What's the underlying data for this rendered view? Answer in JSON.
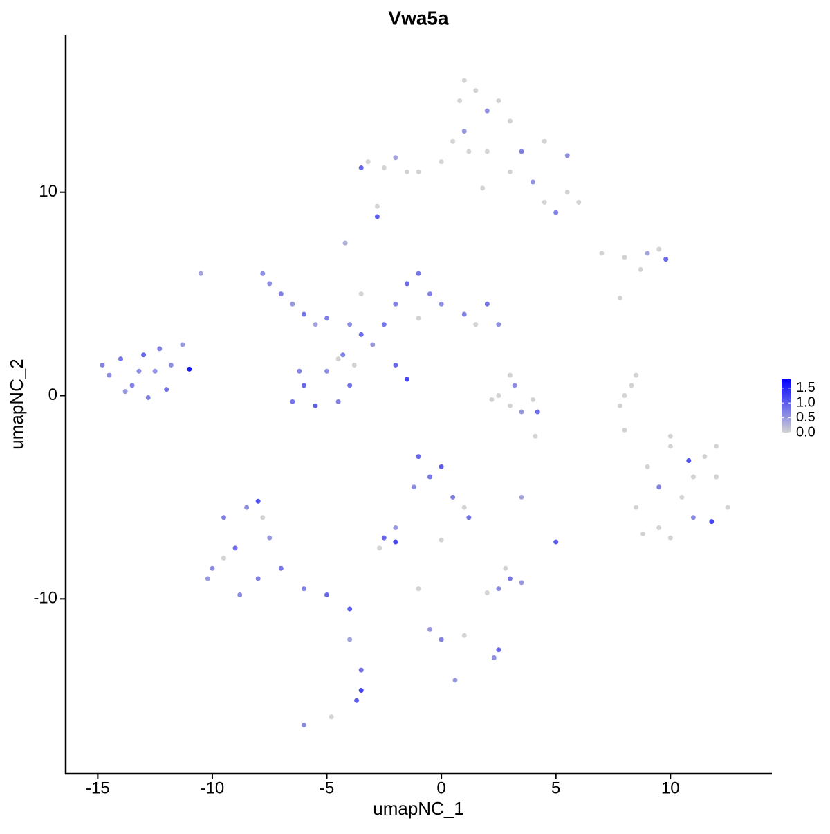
{
  "chart_data": {
    "type": "scatter",
    "title": "Vwa5a",
    "x_label": "umapNC_1",
    "y_label": "umapNC_2",
    "xlim": [
      -16.4,
      14.4
    ],
    "ylim": [
      -18.6,
      17.75
    ],
    "xticks": [
      -15,
      -10,
      -5,
      0,
      5,
      10
    ],
    "yticks": [
      -10,
      0,
      10
    ],
    "color_low": "#d3d3d3",
    "color_high": "#0000ff",
    "color_lim": [
      0,
      1.8
    ],
    "color_ticks": [
      {
        "value": 0,
        "label": "0.0"
      },
      0.5,
      {
        "value": 1,
        "label": "1.0"
      },
      1.5
    ],
    "x": [
      -14.5,
      -14.0,
      -13.5,
      -13.0,
      -12.5,
      -12.0,
      -13.8,
      -12.8,
      -11.8,
      -11.3,
      -11.0,
      -14.8,
      -13.2,
      -12.3,
      -7.5,
      -7.0,
      -6.5,
      -7.8,
      -6.0,
      -5.5,
      -5.0,
      -4.0,
      -3.5,
      -3.0,
      -3.8,
      -4.3,
      -2.5,
      -6.0,
      -6.5,
      -5.5,
      -4.5,
      -4.0,
      -5.0,
      -6.2,
      -4.5,
      -2.0,
      -1.5,
      -1.0,
      -0.5,
      0,
      1.0,
      2.0,
      2.5,
      -1.0,
      1.5,
      -2.0,
      -1.5,
      -4.2,
      -3.5,
      -10.5,
      -10.0,
      -9.5,
      -9.0,
      -8.5,
      -8.0,
      -7.5,
      -8.8,
      -7.0,
      -6.0,
      -5.0,
      -4.0,
      -9.5,
      -7.8,
      -8.0,
      -10.2,
      -4.0,
      -3.5,
      -3.5,
      -3.7,
      -6.0,
      -4.8,
      -1.0,
      -0.5,
      0,
      0.5,
      -1.2,
      1.0,
      1.2,
      -2.0,
      -2.5,
      -2.0,
      -2.7,
      0.0,
      2.5,
      3.0,
      3.5,
      2.0,
      2.8,
      5.0,
      3.5,
      -1.0,
      -0.5,
      0,
      1.0,
      2.5,
      2.3,
      0.6,
      2.5,
      3.0,
      3.2,
      3.5,
      4.0,
      4.2,
      2.2,
      3.0,
      4.1,
      8.0,
      8.3,
      8.5,
      7.8,
      8.0,
      9,
      9.5,
      10,
      10.5,
      11,
      11.5,
      12,
      12.5,
      10,
      8.5,
      11,
      9.5,
      12.0,
      10.8,
      11.8,
      8.8,
      10.0,
      7,
      8,
      9,
      9.5,
      9.8,
      8.7,
      7.8,
      -3.2,
      -2.5,
      -2.0,
      -1.5,
      -3.5,
      -1.0,
      0,
      0.5,
      0.8,
      1.5,
      2.5,
      3.0,
      1.0,
      2.0,
      3.5,
      4.5,
      5.5,
      5.5,
      6.0,
      4.5,
      5.0,
      4.0,
      1.8,
      3.0,
      2.0,
      1.2,
      -2.8,
      -2.8,
      1.0
    ],
    "y": [
      1.0,
      1.8,
      0.5,
      2.0,
      1.2,
      0.3,
      0.2,
      -0.1,
      1.5,
      2.5,
      1.3,
      1.5,
      1.2,
      2.3,
      5.5,
      5.0,
      4.5,
      6.0,
      4.0,
      3.5,
      3.8,
      3.5,
      3.0,
      2.5,
      1.5,
      2.0,
      3.5,
      0.5,
      -0.3,
      -0.5,
      -0.3,
      0.5,
      1.2,
      1.2,
      1.8,
      4.5,
      5.5,
      6.0,
      5.0,
      4.5,
      4.0,
      4.5,
      3.5,
      3.8,
      3.5,
      1.5,
      0.8,
      7.5,
      5.0,
      6.0,
      -8.5,
      -6.0,
      -7.5,
      -5.5,
      -9.0,
      -7.0,
      -9.8,
      -8.5,
      -9.5,
      -9.8,
      -10.5,
      -8.0,
      -6.0,
      -5.2,
      -9.0,
      -12,
      -13.5,
      -14.5,
      -15.0,
      -16.2,
      -15.8,
      -3.0,
      -4.0,
      -3.5,
      -5.0,
      -4.5,
      -5.5,
      -6.0,
      -6.5,
      -7.0,
      -7.2,
      -7.5,
      -7.1,
      -9.5,
      -9.0,
      -9.2,
      -9.7,
      -8.5,
      -7.2,
      -5.0,
      -9.5,
      -11.5,
      -12.0,
      -11.8,
      -12.5,
      -12.9,
      -14.0,
      0,
      -0.5,
      0.5,
      -0.8,
      -0.2,
      -0.8,
      -0.2,
      1.0,
      -2.0,
      0.0,
      0.5,
      1.0,
      -0.5,
      -1.7,
      -3.5,
      -4.5,
      -2.5,
      -5.0,
      -6.0,
      -3.0,
      -4.0,
      -5.5,
      -7.0,
      -5.5,
      -4.0,
      -6.5,
      -2.5,
      -3.2,
      -6.2,
      -6.8,
      -2.0,
      7,
      6.8,
      7.0,
      7.2,
      6.7,
      6.2,
      4.8,
      11.5,
      11.2,
      11.7,
      11.0,
      11.2,
      11.0,
      11.5,
      12.5,
      14.5,
      15.0,
      14.5,
      13.5,
      13.0,
      12.0,
      12.0,
      12.5,
      11.8,
      10.0,
      9.5,
      9.5,
      9.0,
      10.5,
      10.2,
      11.0,
      14.0,
      12.0,
      8.8,
      9.3,
      15.5
    ],
    "color_values": [
      0.6,
      0.8,
      0.7,
      0.9,
      0.6,
      0.8,
      0.5,
      0.7,
      0.6,
      0.5,
      1.6,
      0.7,
      0.6,
      0.7,
      0.6,
      0.7,
      0.5,
      0.6,
      0.8,
      0.4,
      0.7,
      0.6,
      0.9,
      0.5,
      0.0,
      0.7,
      0.8,
      0.9,
      0.8,
      1.0,
      0.7,
      0.8,
      0.6,
      0.7,
      0.0,
      0.7,
      0.9,
      0.8,
      0.7,
      0.6,
      0.7,
      0.8,
      0.6,
      0.0,
      0.0,
      0.9,
      1.2,
      0.3,
      0.0,
      0.4,
      0.6,
      0.7,
      0.8,
      0.6,
      0.7,
      0.5,
      0.6,
      0.8,
      0.7,
      0.9,
      1.0,
      0.0,
      0.0,
      1.1,
      0.5,
      0.4,
      0.8,
      1.2,
      1.0,
      0.6,
      0.0,
      0.9,
      0.8,
      1.0,
      0.7,
      0.6,
      0.0,
      0.8,
      0.5,
      0.9,
      1.2,
      0.0,
      0.0,
      0.6,
      0.8,
      0.5,
      0.0,
      0.0,
      1.0,
      0.4,
      0.0,
      0.5,
      0.7,
      0.0,
      0.9,
      0.6,
      0.5,
      0.0,
      0.0,
      0.6,
      0.5,
      0.0,
      0.9,
      0.0,
      0.0,
      0.0,
      0,
      0,
      0,
      0,
      0,
      0,
      0.7,
      0,
      0,
      0.6,
      0,
      0,
      0,
      0,
      0,
      0,
      0,
      0,
      1.1,
      1.2,
      0,
      0,
      0,
      0,
      0.4,
      0,
      0.9,
      0,
      0,
      0,
      0,
      0.4,
      0,
      0.9,
      0,
      0,
      0,
      0,
      0,
      0,
      0,
      0.5,
      0,
      0.7,
      0,
      0.6,
      0,
      0,
      0,
      0.7,
      0.6,
      0,
      0,
      0.6,
      0,
      1.0,
      0,
      0
    ]
  }
}
